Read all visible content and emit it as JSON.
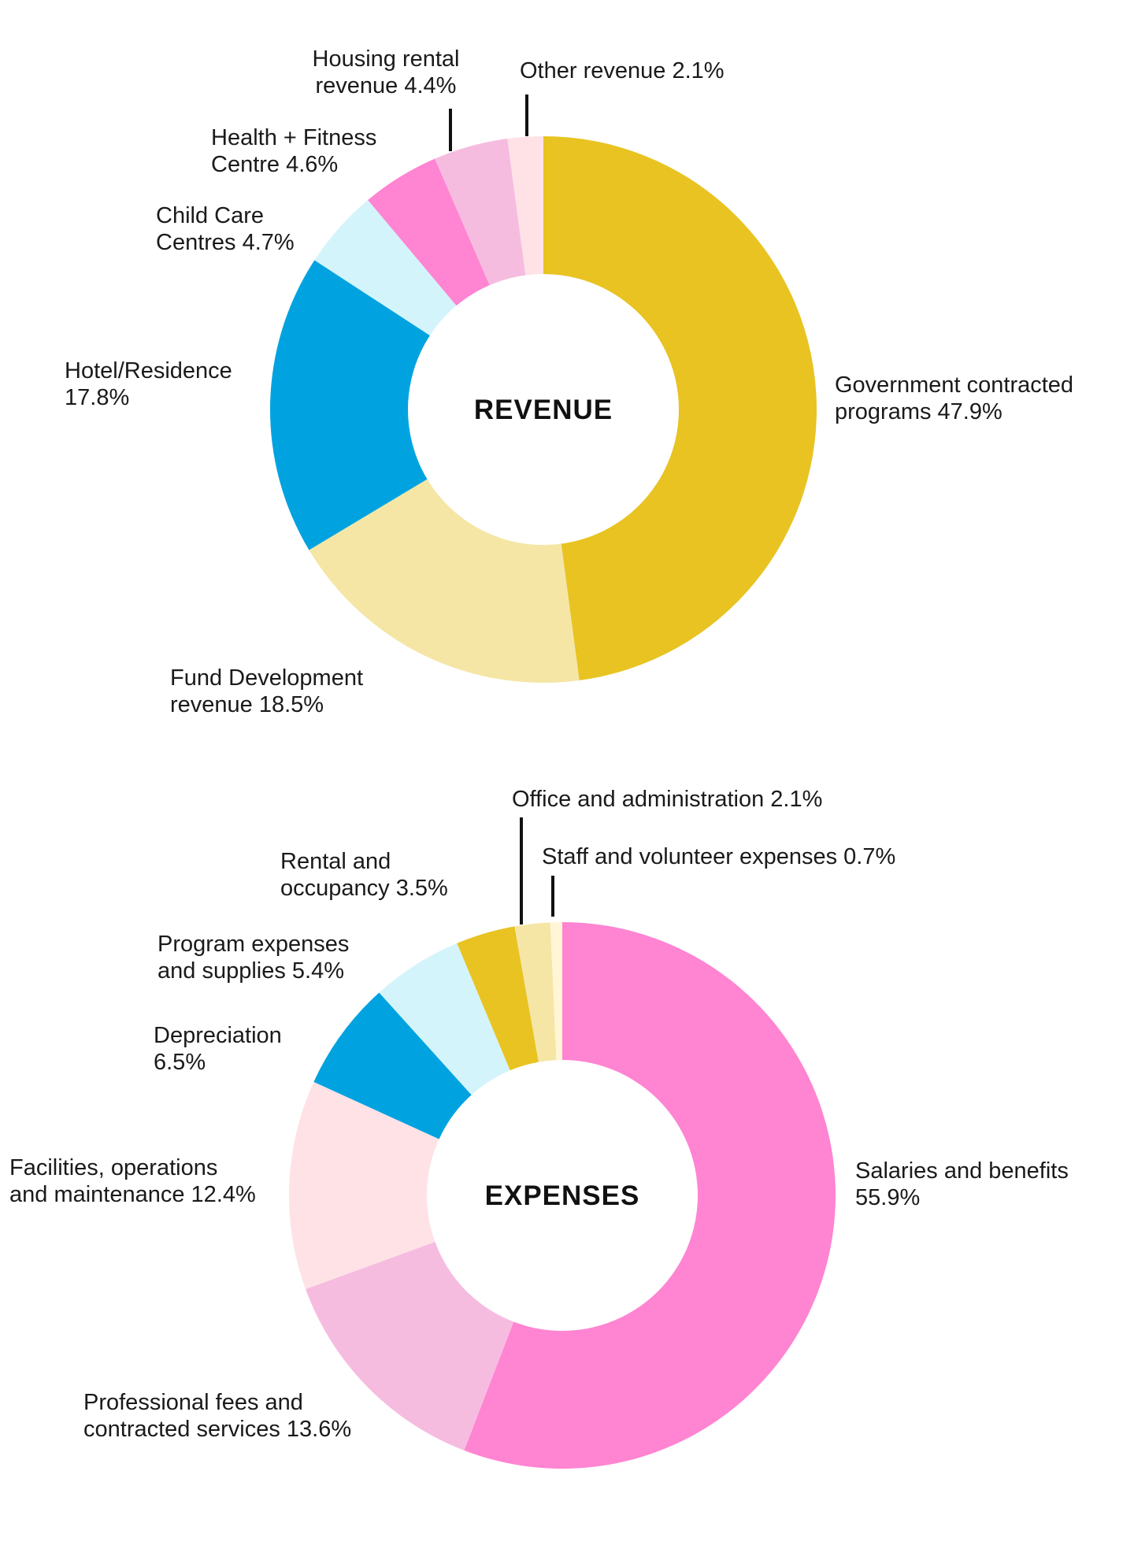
{
  "chart_data": [
    {
      "type": "pie",
      "title": "REVENUE",
      "categories": [
        "Government contracted programs",
        "Fund Development revenue",
        "Hotel/Residence",
        "Child Care Centres",
        "Health + Fitness Centre",
        "Housing rental revenue",
        "Other revenue"
      ],
      "values": [
        47.9,
        18.5,
        17.8,
        4.7,
        4.6,
        4.4,
        2.1
      ],
      "colors": [
        "#E8C322",
        "#F5E6A6",
        "#00A3E0",
        "#D4F4FB",
        "#FF84D2",
        "#F6BCE0",
        "#FFE2E6"
      ],
      "labels": [
        [
          "Government contracted",
          "programs 47.9%"
        ],
        [
          "Fund Development",
          "revenue 18.5%"
        ],
        [
          "Hotel/Residence",
          "17.8%"
        ],
        [
          "Child Care",
          "Centres 4.7%"
        ],
        [
          "Health + Fitness",
          "Centre 4.6%"
        ],
        [
          "Housing rental",
          "revenue 4.4%"
        ],
        [
          "Other revenue 2.1%"
        ]
      ]
    },
    {
      "type": "pie",
      "title": "EXPENSES",
      "categories": [
        "Salaries and benefits",
        "Professional fees and contracted services",
        "Facilities, operations and maintenance",
        "Depreciation",
        "Program expenses and supplies",
        "Rental and occupancy",
        "Office and administration",
        "Staff and volunteer expenses"
      ],
      "values": [
        55.9,
        13.6,
        12.4,
        6.5,
        5.4,
        3.5,
        2.1,
        0.7
      ],
      "colors": [
        "#FF84D2",
        "#F6BCE0",
        "#FFE2E6",
        "#00A3E0",
        "#D4F4FB",
        "#E8C322",
        "#F5E6A6",
        "#FFF6D6"
      ],
      "labels": [
        [
          "Salaries and benefits",
          "55.9%"
        ],
        [
          "Professional fees and",
          "contracted services 13.6%"
        ],
        [
          "Facilities, operations",
          "and maintenance 12.4%"
        ],
        [
          "Depreciation",
          "6.5%"
        ],
        [
          "Program expenses",
          "and supplies 5.4%"
        ],
        [
          "Rental and",
          "occupancy 3.5%"
        ],
        [
          "Office and administration 2.1%"
        ],
        [
          "Staff and volunteer expenses 0.7%"
        ]
      ]
    }
  ]
}
